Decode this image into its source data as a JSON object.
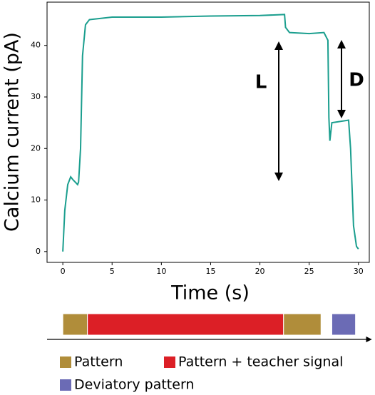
{
  "chart_data": {
    "type": "line",
    "xlabel": "Time (s)",
    "ylabel": "Calcium current (pA)",
    "xlim": [
      -1.6,
      31.1
    ],
    "ylim": [
      -2.1,
      48.4
    ],
    "xticks": [
      0,
      5,
      10,
      15,
      20,
      25,
      30
    ],
    "yticks": [
      0,
      10,
      20,
      30,
      40
    ],
    "series": [
      {
        "color": "#1a9e8e",
        "x": [
          0,
          0.2,
          0.5,
          0.8,
          1.0,
          1.5,
          1.6,
          1.8,
          2.0,
          2.3,
          2.7,
          5,
          10,
          15,
          20,
          22.5,
          22.6,
          23,
          25,
          26.5,
          26.9,
          27.0,
          27.1,
          27.3,
          29.0,
          29.2,
          29.5,
          29.8,
          30.0
        ],
        "values": [
          0,
          8,
          13,
          14.5,
          14,
          13,
          13.5,
          20,
          38,
          44,
          45,
          45.5,
          45.5,
          45.7,
          45.8,
          46,
          43.5,
          42.5,
          42.3,
          42.5,
          41,
          26,
          21.5,
          25,
          25.5,
          20,
          5,
          1,
          0.5
        ]
      }
    ],
    "annotations": [
      "L",
      "D"
    ],
    "timeline": [
      {
        "start": 0,
        "end": 2.5,
        "color": "#b08d3a"
      },
      {
        "start": 2.5,
        "end": 22.4,
        "color": "#dc1f26"
      },
      {
        "start": 22.4,
        "end": 26.2,
        "color": "#b08d3a"
      },
      {
        "start": 27.3,
        "end": 29.7,
        "color": "#6b6bb5"
      }
    ],
    "legend": [
      {
        "label": "Pattern",
        "color": "#b08d3a"
      },
      {
        "label": "Pattern + teacher signal",
        "color": "#dc1f26"
      },
      {
        "label": "Deviatory pattern",
        "color": "#6b6bb5"
      }
    ]
  }
}
